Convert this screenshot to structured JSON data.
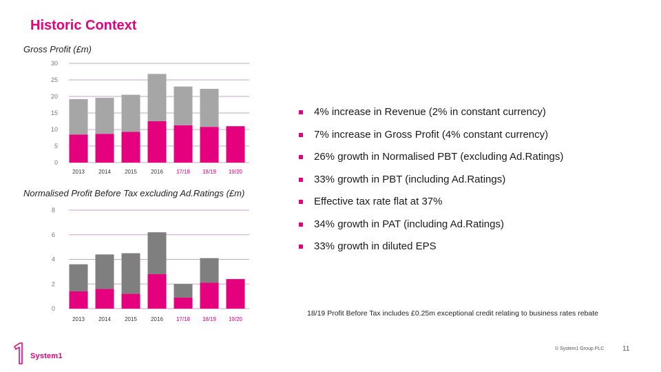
{
  "slide": {
    "title": "Historic Context",
    "bullets": [
      "4% increase in Revenue (2% in constant currency)",
      "7% increase in Gross Profit (4% constant currency)",
      "26% growth in Normalised PBT (excluding Ad.Ratings)",
      "33% growth in PBT (including Ad.Ratings)",
      "Effective tax rate flat at 37%",
      "34% growth in PAT (including Ad.Ratings)",
      "33% growth in diluted EPS"
    ],
    "footnote": "18/19 Profit Before Tax includes £0.25m exceptional credit relating to business rates rebate",
    "logo_text": "System1",
    "copyright": "© System1 Group PLC",
    "page_number": "11"
  },
  "colors": {
    "accent": "#e5007d",
    "light_grey": "#a6a6a6",
    "dark_grey": "#7f7f7f",
    "gridline": "#c8a2c8"
  },
  "chart_data": [
    {
      "type": "bar",
      "title": "Gross Profit (£m)",
      "categories": [
        "2013",
        "2014",
        "2015",
        "2016",
        "17/18",
        "18/19",
        "19/20"
      ],
      "category_highlight": [
        false,
        false,
        false,
        false,
        true,
        true,
        true
      ],
      "series": [
        {
          "values": [
            8.5,
            8.7,
            9.3,
            12.5,
            11.3,
            10.8,
            11.0
          ],
          "color": "#e5007d"
        },
        {
          "values": [
            10.7,
            10.9,
            11.2,
            14.3,
            11.7,
            11.5,
            0
          ],
          "color": "#a6a6a6"
        }
      ],
      "stacked": true,
      "ylim": [
        0,
        30
      ],
      "yticks": [
        0,
        5,
        10,
        15,
        20,
        25,
        30
      ],
      "grid": true
    },
    {
      "type": "bar",
      "title": "Normalised Profit Before Tax excluding Ad.Ratings (£m)",
      "categories": [
        "2013",
        "2014",
        "2015",
        "2016",
        "17/18",
        "18/19",
        "19/20"
      ],
      "category_highlight": [
        false,
        false,
        false,
        false,
        true,
        true,
        true
      ],
      "series": [
        {
          "values": [
            1.4,
            1.6,
            1.2,
            2.8,
            0.9,
            2.1,
            2.4
          ],
          "color": "#e5007d"
        },
        {
          "values": [
            2.2,
            2.8,
            3.3,
            3.4,
            1.1,
            2.0,
            0
          ],
          "color": "#7f7f7f"
        }
      ],
      "stacked": true,
      "ylim": [
        0,
        8
      ],
      "yticks": [
        0,
        2,
        4,
        6,
        8
      ],
      "grid": true
    }
  ]
}
